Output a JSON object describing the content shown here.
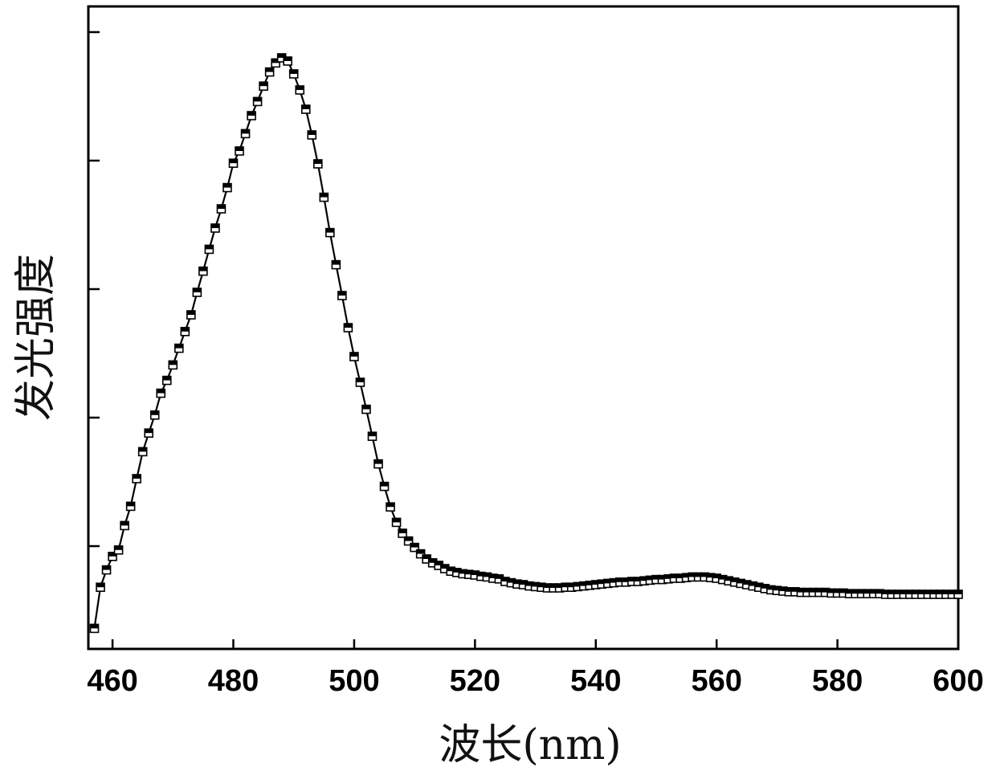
{
  "chart_data": {
    "type": "line",
    "title": "",
    "xlabel": "波长(nm)",
    "ylabel": "发光强度",
    "xlim": [
      456,
      600
    ],
    "ylim": [
      0,
      1.0
    ],
    "x_ticks": [
      460,
      480,
      500,
      520,
      540,
      560,
      580,
      600
    ],
    "y_ticks_labeled": false,
    "y_tick_values": [
      0.16,
      0.36,
      0.56,
      0.76,
      0.96
    ],
    "grid": false,
    "legend": "none",
    "series": [
      {
        "marker_style": "half-filled square",
        "color": "#000000",
        "x": [
          457,
          458,
          459,
          460,
          461,
          462,
          463,
          464,
          465,
          466,
          467,
          468,
          469,
          470,
          471,
          472,
          473,
          474,
          475,
          476,
          477,
          478,
          479,
          480,
          481,
          482,
          483,
          484,
          485,
          486,
          487,
          488,
          489,
          490,
          491,
          492,
          493,
          494,
          495,
          496,
          497,
          498,
          499,
          500,
          501,
          502,
          503,
          504,
          505,
          506,
          507,
          508,
          509,
          510,
          511,
          512,
          513,
          514,
          515,
          516,
          517,
          518,
          519,
          520,
          521,
          522,
          523,
          524,
          525,
          526,
          527,
          528,
          529,
          530,
          531,
          532,
          533,
          534,
          535,
          536,
          537,
          538,
          539,
          540,
          541,
          542,
          543,
          544,
          545,
          546,
          547,
          548,
          549,
          550,
          551,
          552,
          553,
          554,
          555,
          556,
          557,
          558,
          559,
          560,
          561,
          562,
          563,
          564,
          565,
          566,
          567,
          568,
          569,
          570,
          571,
          572,
          573,
          574,
          575,
          576,
          577,
          578,
          579,
          580,
          581,
          582,
          583,
          584,
          585,
          586,
          587,
          588,
          589,
          590,
          591,
          592,
          593,
          594,
          595,
          596,
          597,
          598,
          599,
          600
        ],
        "values": [
          0.032,
          0.096,
          0.123,
          0.144,
          0.154,
          0.192,
          0.222,
          0.265,
          0.307,
          0.336,
          0.364,
          0.398,
          0.418,
          0.442,
          0.468,
          0.494,
          0.52,
          0.555,
          0.588,
          0.622,
          0.655,
          0.685,
          0.718,
          0.756,
          0.775,
          0.802,
          0.83,
          0.852,
          0.876,
          0.898,
          0.912,
          0.92,
          0.915,
          0.895,
          0.87,
          0.84,
          0.8,
          0.755,
          0.703,
          0.648,
          0.598,
          0.55,
          0.5,
          0.455,
          0.415,
          0.373,
          0.331,
          0.288,
          0.253,
          0.221,
          0.197,
          0.18,
          0.168,
          0.158,
          0.148,
          0.14,
          0.134,
          0.13,
          0.125,
          0.121,
          0.119,
          0.117,
          0.116,
          0.115,
          0.113,
          0.112,
          0.11,
          0.109,
          0.105,
          0.103,
          0.101,
          0.1,
          0.098,
          0.097,
          0.096,
          0.095,
          0.095,
          0.095,
          0.096,
          0.096,
          0.097,
          0.098,
          0.099,
          0.1,
          0.101,
          0.102,
          0.103,
          0.104,
          0.104,
          0.105,
          0.105,
          0.106,
          0.107,
          0.108,
          0.108,
          0.109,
          0.11,
          0.11,
          0.111,
          0.112,
          0.112,
          0.112,
          0.111,
          0.11,
          0.108,
          0.106,
          0.104,
          0.102,
          0.1,
          0.098,
          0.096,
          0.094,
          0.092,
          0.091,
          0.09,
          0.089,
          0.089,
          0.088,
          0.088,
          0.088,
          0.088,
          0.088,
          0.087,
          0.087,
          0.087,
          0.086,
          0.086,
          0.086,
          0.086,
          0.086,
          0.086,
          0.085,
          0.085,
          0.085,
          0.085,
          0.085,
          0.085,
          0.085,
          0.085,
          0.085,
          0.085,
          0.085,
          0.085,
          0.085
        ]
      }
    ]
  }
}
